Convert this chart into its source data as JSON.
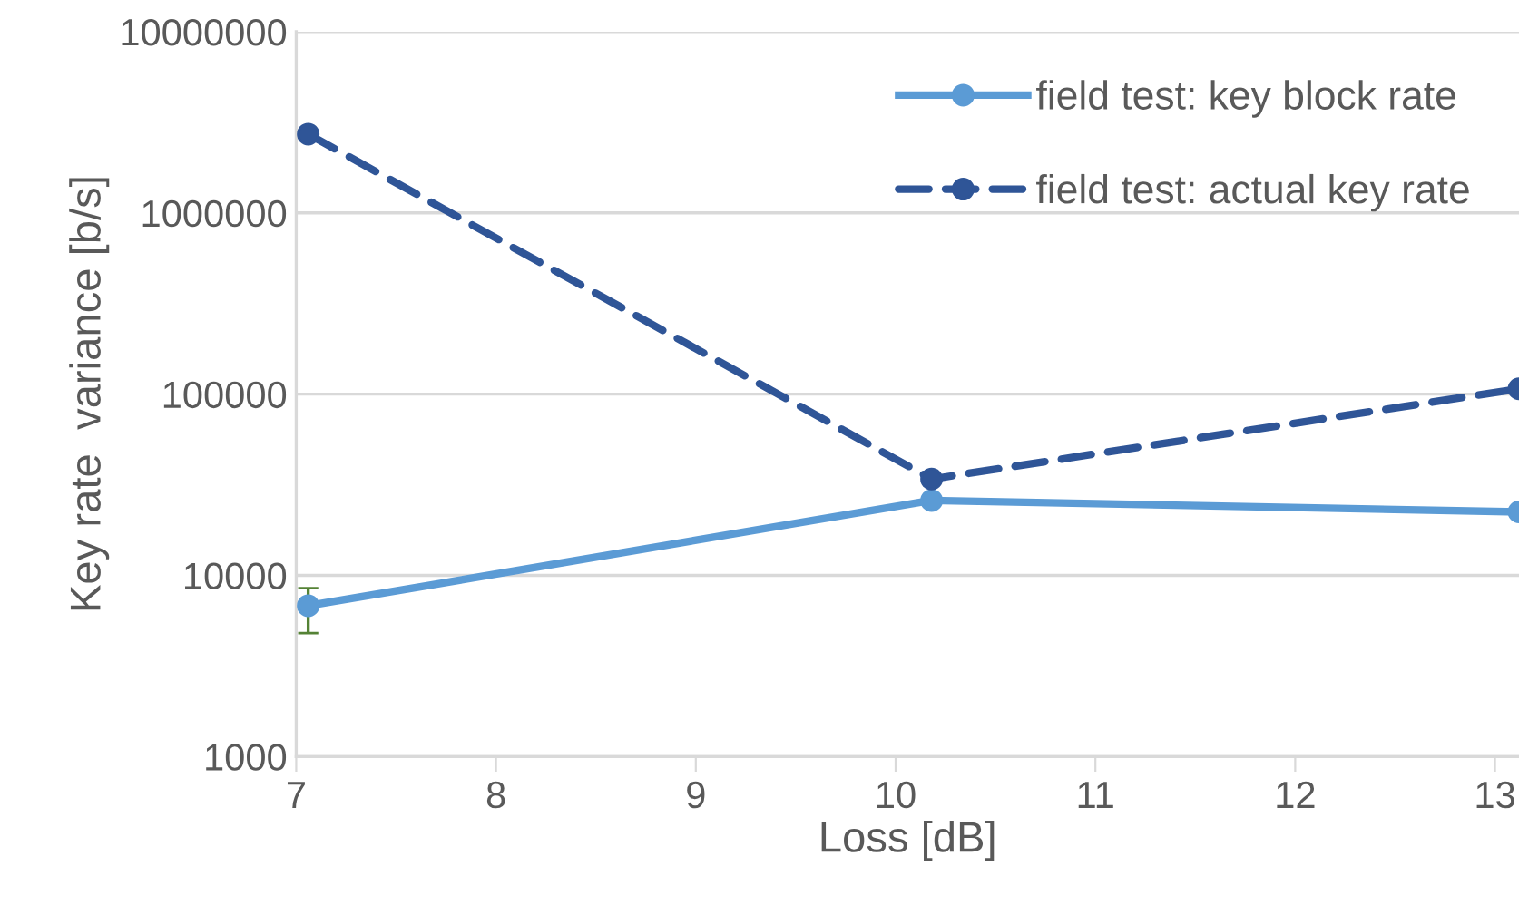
{
  "chart_data": {
    "type": "line",
    "xlabel": "Loss [dB]",
    "ylabel": "Key rate  variance [b/s]",
    "x": [
      7.06,
      10.18,
      13.12
    ],
    "series": [
      {
        "name": "field test: key block rate",
        "color": "#5b9bd5",
        "values": [
          6800,
          25900,
          22400
        ],
        "errors": [
          [
            4800,
            8500
          ],
          null,
          null
        ],
        "line_style": "solid"
      },
      {
        "name": "field test: actual key rate",
        "color": "#2f5597",
        "values": [
          2720000,
          34000,
          107000
        ],
        "line_style": "dashed"
      }
    ],
    "log": "y",
    "xlim": [
      7,
      13.12
    ],
    "xticks": [
      7,
      8,
      9,
      10,
      11,
      12,
      13
    ],
    "ylim": [
      1000,
      10000000
    ],
    "yticks": [
      1000,
      10000,
      100000,
      1000000,
      10000000
    ],
    "grid": "y",
    "legend": "top right",
    "marker": "circle"
  }
}
